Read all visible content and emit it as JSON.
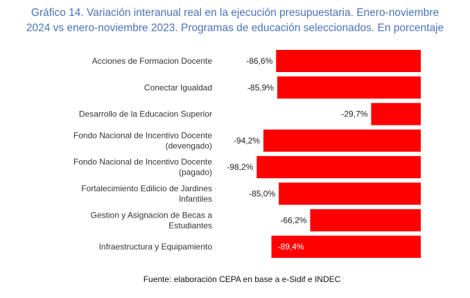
{
  "chart_data": {
    "type": "bar",
    "orientation": "horizontal",
    "title_line1": "Gráfico 14. Variación interanual real en la ejecución presupuestaria. Enero-noviembre",
    "title_line2": "2024 vs enero-noviembre 2023. Programas de educación seleccionados. En porcentaje",
    "categories": [
      [
        "Acciones de Formacion Docente"
      ],
      [
        "Conectar Igualdad"
      ],
      [
        "Desarrollo de la Educacion Superior"
      ],
      [
        "Fondo Nacional de Incentivo Docente",
        "(devengado)"
      ],
      [
        "Fondo Nacional de Incentivo Docente",
        "(pagado)"
      ],
      [
        "Fortalecimiento Edilicio de Jardines",
        "Infantiles"
      ],
      [
        "Gestion y Asignacion de Becas a",
        "Estudiantes"
      ],
      [
        "Infraestructura y Equipamiento"
      ]
    ],
    "values": [
      -86.6,
      -85.9,
      -29.7,
      -94.2,
      -98.2,
      -85.0,
      -66.2,
      -89.4
    ],
    "data_labels": [
      "-86,6%",
      "-85,9%",
      "-29,7%",
      "-94,2%",
      "-98,2%",
      "-85,0%",
      "-66,2%",
      "-89,4%"
    ],
    "label_inside": [
      false,
      false,
      false,
      false,
      false,
      false,
      false,
      true
    ],
    "bar_color": "#ff0000",
    "xlim": [
      -100,
      0
    ],
    "grid": false,
    "axes_visible": false,
    "legend": "none"
  },
  "source": "Fuente: elaboración CEPA en base a e-Sidif e INDEC"
}
